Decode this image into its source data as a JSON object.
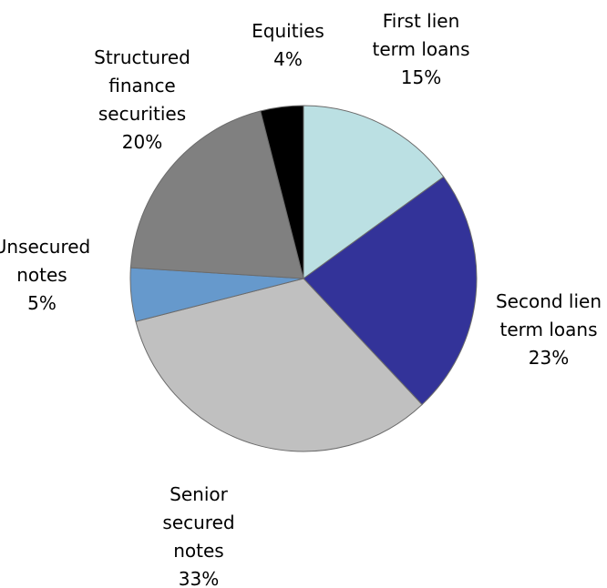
{
  "chart_data": {
    "type": "pie",
    "start": "12 o'clock",
    "direction": "clockwise",
    "legend": "none",
    "slices": [
      {
        "name": "First lien term loans",
        "label_lines": [
          "First lien",
          "term loans"
        ],
        "value": 15,
        "value_label": "15%",
        "color": "#BBE0E3"
      },
      {
        "name": "Second lien term loans",
        "label_lines": [
          "Second lien",
          "term loans"
        ],
        "value": 23,
        "value_label": "23%",
        "color": "#333399"
      },
      {
        "name": "Senior secured notes",
        "label_lines": [
          "Senior",
          "secured",
          "notes"
        ],
        "value": 33,
        "value_label": "33%",
        "color": "#C0C0C0"
      },
      {
        "name": "Unsecured notes",
        "label_lines": [
          "Unsecured",
          "notes"
        ],
        "value": 5,
        "value_label": "5%",
        "color": "#6699CC"
      },
      {
        "name": "Structured finance securities",
        "label_lines": [
          "Structured",
          "finance",
          "securities"
        ],
        "value": 20,
        "value_label": "20%",
        "color": "#808080"
      },
      {
        "name": "Equities",
        "label_lines": [
          "Equities"
        ],
        "value": 4,
        "value_label": "4%",
        "color": "#000000"
      }
    ]
  }
}
